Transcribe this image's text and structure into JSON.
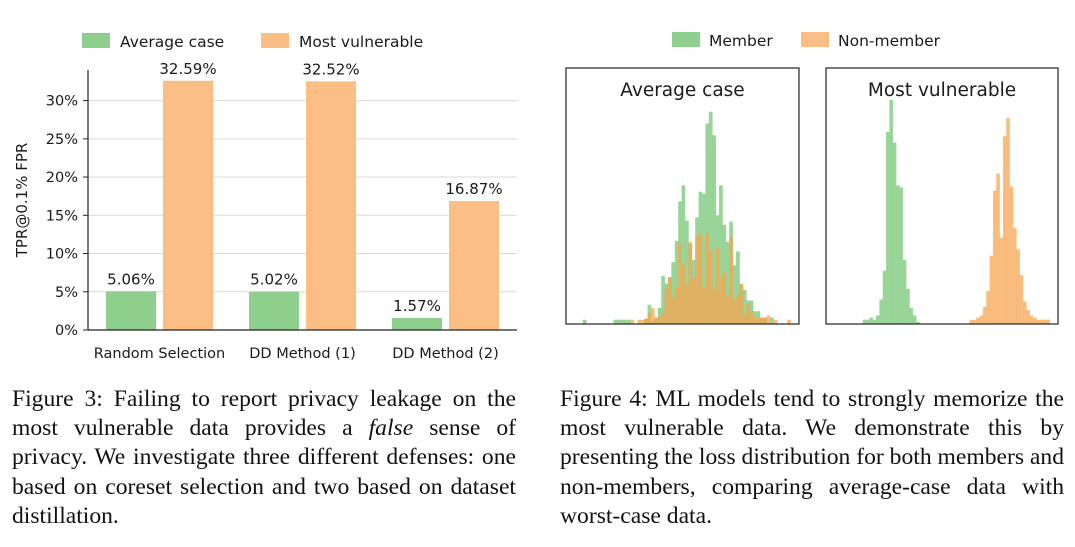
{
  "chart_data": [
    {
      "type": "bar",
      "ylabel": "TPR@0.1% FPR",
      "ylim": [
        0,
        34
      ],
      "yticks": [
        "0%",
        "5%",
        "10%",
        "15%",
        "20%",
        "25%",
        "30%"
      ],
      "grid": "horizontal",
      "legend_position": "top",
      "categories": [
        "Random Selection",
        "DD Method (1)",
        "DD Method (2)"
      ],
      "series": [
        {
          "name": "Average case",
          "color": "#8ecf8e",
          "values": [
            5.06,
            5.02,
            1.57
          ],
          "labels": [
            "5.06%",
            "5.02%",
            "1.57%"
          ]
        },
        {
          "name": "Most vulnerable",
          "color": "#fbbf86",
          "values": [
            32.59,
            32.52,
            16.87
          ],
          "labels": [
            "32.59%",
            "32.52%",
            "16.87%"
          ]
        }
      ]
    },
    {
      "type": "histogram",
      "legend_position": "top",
      "legend": [
        {
          "name": "Member",
          "color": "#8ecf8e"
        },
        {
          "name": "Non-member",
          "color": "#fbbf86"
        }
      ],
      "panels": [
        {
          "title": "Average case",
          "member": [
            0,
            0,
            0.4,
            0,
            0,
            0,
            0,
            0,
            0,
            0,
            0,
            0.4,
            0.4,
            0.4,
            0.4,
            0.4,
            0,
            0,
            0,
            0,
            0.5,
            1.8,
            0.3,
            0.6,
            1.5,
            4.5,
            3.8,
            4.4,
            5.8,
            7.8,
            11.5,
            13,
            9.7,
            7.5,
            6,
            10,
            12.4,
            12.2,
            18.8,
            19.9,
            17.7,
            10.2,
            13,
            9.3,
            7.7,
            9.6,
            5.5,
            6.8,
            3.7,
            3.2,
            2.2,
            2.2,
            1.2,
            1.2,
            0.6,
            0.6,
            0,
            0.6,
            0,
            0,
            0,
            0,
            0,
            0
          ],
          "nonmember": [
            0,
            0,
            0,
            0,
            0,
            0,
            0,
            0,
            0,
            0,
            0,
            0,
            0,
            0,
            0,
            0,
            0.4,
            0,
            0.4,
            0.4,
            0.5,
            1,
            1.5,
            0.6,
            0.7,
            1,
            3.3,
            4.3,
            2.5,
            3.4,
            7.6,
            5.6,
            3.7,
            7.7,
            4.3,
            8.2,
            8.5,
            3.4,
            8.5,
            6.9,
            3.2,
            7.2,
            4.3,
            4.9,
            2.7,
            8.1,
            2.2,
            2.7,
            3.8,
            0.8,
            1.9,
            1.2,
            0.7,
            0.6,
            0.6,
            0.6,
            0.8,
            0,
            0.4,
            0,
            0,
            0,
            0.4,
            0
          ]
        },
        {
          "title": "Most vulnerable",
          "member": [
            0,
            0,
            0,
            0,
            0,
            0,
            0,
            0,
            0.4,
            0.4,
            0.6,
            0.4,
            0.8,
            2.3,
            5,
            18,
            21,
            17,
            13,
            12.8,
            6,
            3.3,
            1.5,
            0.8,
            0.2,
            0,
            0,
            0,
            0,
            0,
            0,
            0,
            0,
            0,
            0,
            0,
            0,
            0,
            0,
            0,
            0,
            0,
            0,
            0,
            0,
            0,
            0,
            0,
            0,
            0,
            0,
            0,
            0,
            0,
            0,
            0,
            0,
            0,
            0,
            0,
            0,
            0,
            0,
            0,
            0
          ],
          "nonmember": [
            0,
            0,
            0,
            0,
            0,
            0,
            0,
            0,
            0,
            0,
            0,
            0,
            0,
            0,
            0,
            0,
            0,
            0,
            0,
            0,
            0,
            0,
            0,
            0,
            0,
            0,
            0,
            0,
            0,
            0,
            0,
            0,
            0,
            0,
            0,
            0,
            0,
            0,
            0,
            0,
            0.4,
            0.4,
            0.6,
            0.8,
            1.6,
            3.1,
            6.4,
            12.5,
            14.1,
            8.1,
            17.6,
            19.3,
            12.9,
            9,
            7,
            4.6,
            2.1,
            1.3,
            0.8,
            0.6,
            0.4,
            0.4,
            0.4,
            0.4
          ]
        }
      ]
    }
  ],
  "captions": {
    "fig3_a": "Figure 3: Failing to report privacy leakage on the most vulnerable data provides a ",
    "fig3_em": "false",
    "fig3_b": " sense of privacy. We investigate three different defenses: one based on coreset selection and two based on dataset distillation.",
    "fig4": "Figure 4: ML models tend to strongly memorize the most vulnerable data. We demonstrate this by presenting the loss distribution for both members and non-members, comparing average-case data with worst-case data."
  }
}
